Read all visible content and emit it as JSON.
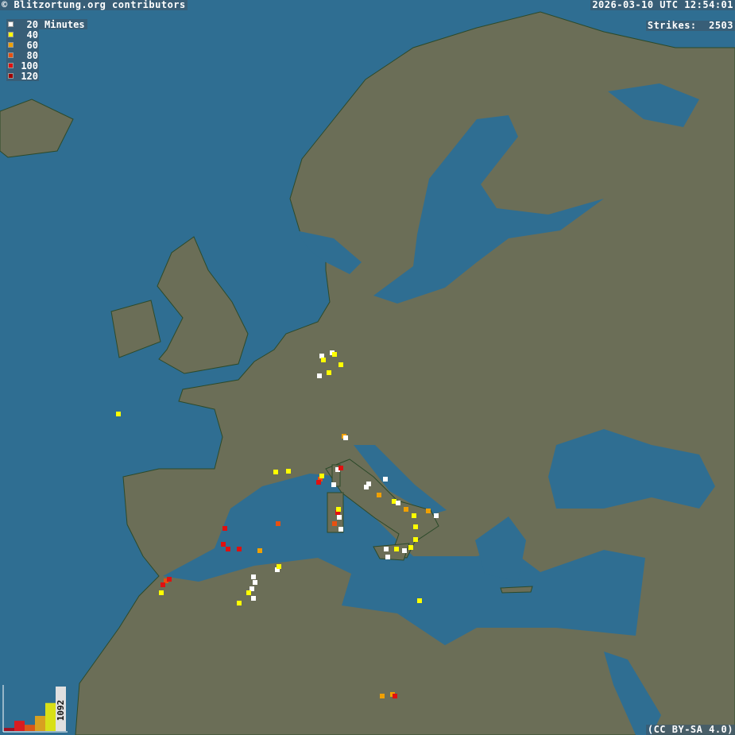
{
  "header": {
    "copyright": "© Blitzortung.org contributors",
    "datetime": "2026-03-10 UTC 12:54:01",
    "strikes_label": "Strikes:",
    "strikes_count": "2503"
  },
  "legend": {
    "unit": "Minutes",
    "items": [
      {
        "label": "20",
        "color": "#ffffff"
      },
      {
        "label": "40",
        "color": "#ffff00"
      },
      {
        "label": "60",
        "color": "#f0a000"
      },
      {
        "label": "80",
        "color": "#e85010"
      },
      {
        "label": "100",
        "color": "#e01010"
      },
      {
        "label": "120",
        "color": "#a00000"
      }
    ]
  },
  "histogram": {
    "max_label": "1092",
    "bars": [
      {
        "age": "120",
        "color": "#a01020",
        "relative": 0.07
      },
      {
        "age": "100",
        "color": "#d81c20",
        "relative": 0.23
      },
      {
        "age": "80",
        "color": "#d85818",
        "relative": 0.14
      },
      {
        "age": "60",
        "color": "#d8a020",
        "relative": 0.34
      },
      {
        "age": "40",
        "color": "#d8e018",
        "relative": 0.63
      },
      {
        "age": "20",
        "color": "#e0e0e0",
        "relative": 1.0
      }
    ]
  },
  "footer": {
    "license": "(CC BY-SA 4.0)"
  },
  "colors": {
    "ocean": "#2f6e92",
    "land": "#6b6e57",
    "border": "#c8c8c8"
  }
}
